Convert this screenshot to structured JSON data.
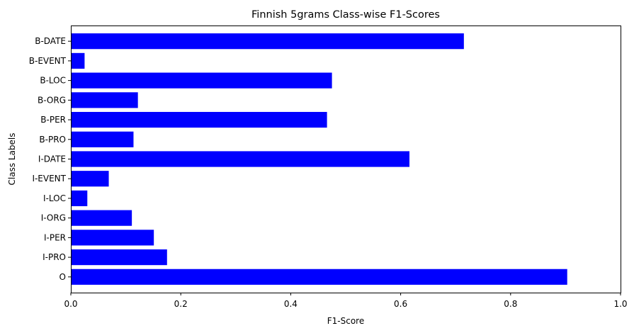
{
  "chart_data": {
    "type": "bar",
    "orientation": "horizontal",
    "title": "Finnish 5grams Class-wise F1-Scores",
    "xlabel": "F1-Score",
    "ylabel": "Class Labels",
    "xlim": [
      0,
      1.0
    ],
    "xticks": [
      "0.0",
      "0.2",
      "0.4",
      "0.6",
      "0.8",
      "1.0"
    ],
    "categories": [
      "B-DATE",
      "B-EVENT",
      "B-LOC",
      "B-ORG",
      "B-PER",
      "B-PRO",
      "I-DATE",
      "I-EVENT",
      "I-LOC",
      "I-ORG",
      "I-PER",
      "I-PRO",
      "O"
    ],
    "values": [
      0.715,
      0.025,
      0.475,
      0.122,
      0.466,
      0.114,
      0.616,
      0.069,
      0.03,
      0.111,
      0.151,
      0.175,
      0.903
    ],
    "bar_color": "#0000ff",
    "grid": false,
    "legend": "none"
  }
}
